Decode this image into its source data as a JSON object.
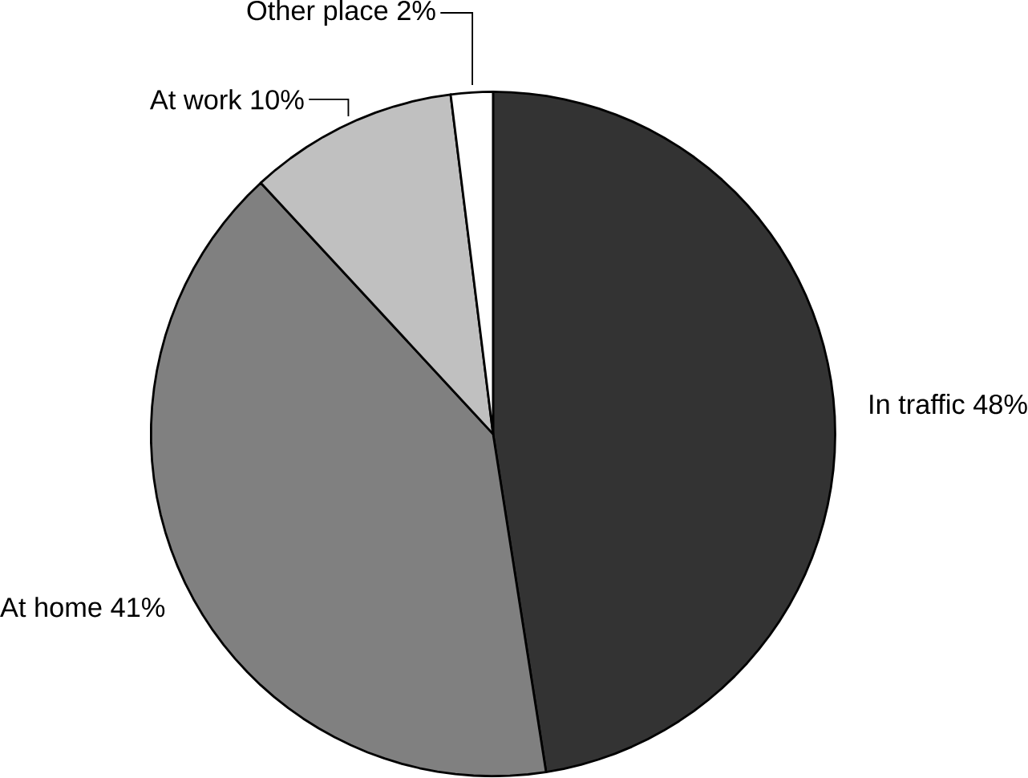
{
  "chart_data": {
    "type": "pie",
    "categories": [
      "In traffic",
      "At home",
      "At work",
      "Other place"
    ],
    "values": [
      48,
      41,
      10,
      2
    ],
    "value_labels": [
      "48%",
      "41%",
      "10%",
      "2%"
    ],
    "colors": [
      "#333333",
      "#808080",
      "#c0c0c0",
      "#ffffff"
    ]
  }
}
